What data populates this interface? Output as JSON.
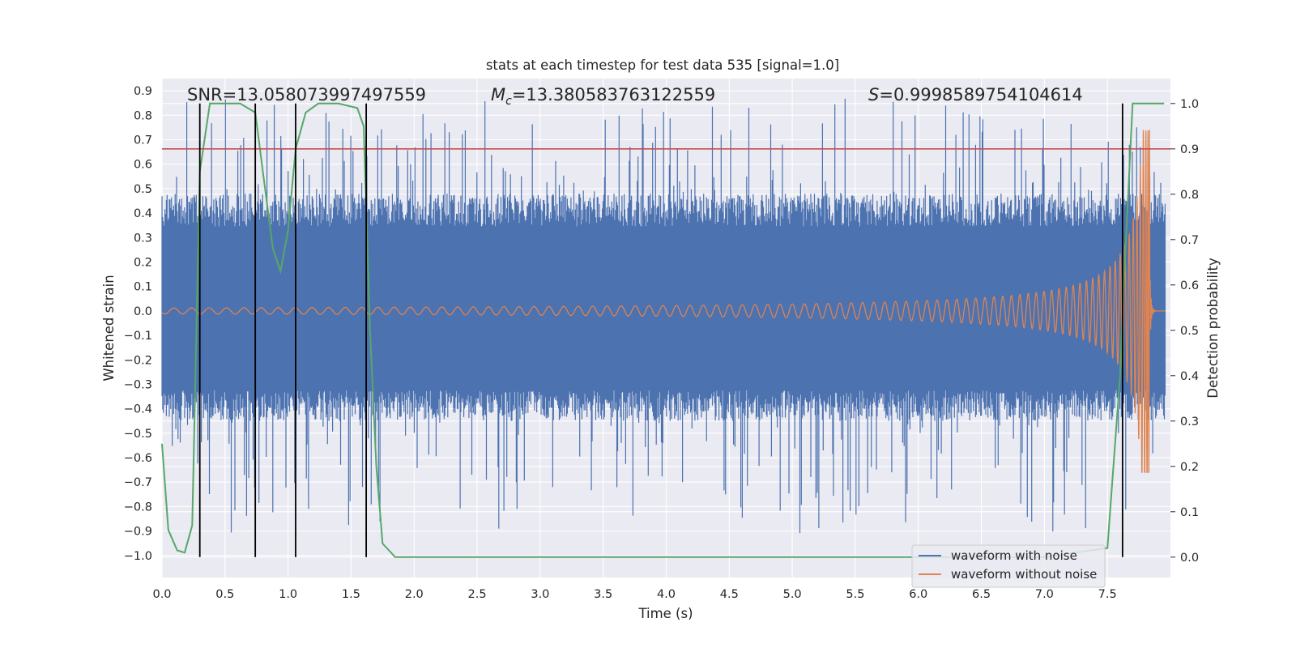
{
  "chart_data": {
    "type": "line",
    "title": "stats at each timestep for test data 535 [signal=1.0]",
    "xlabel": "Time (s)",
    "ylabel": "Whitened strain",
    "y2label": "Detection probability",
    "xlim": [
      0.0,
      8.0
    ],
    "ylim": [
      -1.09,
      0.95
    ],
    "y2lim": [
      -0.045,
      1.055
    ],
    "x_ticks": [
      "0.0",
      "0.5",
      "1.0",
      "1.5",
      "2.0",
      "2.5",
      "3.0",
      "3.5",
      "4.0",
      "4.5",
      "5.0",
      "5.5",
      "6.0",
      "6.5",
      "7.0",
      "7.5"
    ],
    "y_ticks": [
      "0.9",
      "0.8",
      "0.7",
      "0.6",
      "0.5",
      "0.4",
      "0.3",
      "0.2",
      "0.1",
      "0.0",
      "−0.1",
      "−0.2",
      "−0.3",
      "−0.4",
      "−0.5",
      "−0.6",
      "−0.7",
      "−0.8",
      "−0.9",
      "−1.0"
    ],
    "y2_ticks": [
      "1.0",
      "0.9",
      "0.8",
      "0.7",
      "0.6",
      "0.5",
      "0.4",
      "0.3",
      "0.2",
      "0.1",
      "0.0"
    ],
    "grid": true,
    "legend_position": "bottom-right",
    "annotations": {
      "snr": "SNR=13.058073997497559",
      "mc_symbol": "M",
      "mc_sub": "c",
      "mc_value": "=13.380583763122559",
      "s_symbol": "S",
      "s_value": "=0.9998589754104614"
    },
    "series": [
      {
        "name": "waveform with noise",
        "color": "#4c72b0",
        "axis": "left",
        "envelope_upper": 0.48,
        "envelope_lower": -0.45,
        "max": 0.9,
        "min": -1.0
      },
      {
        "name": "waveform without noise",
        "color": "#dd8452",
        "axis": "left",
        "start_amplitude": 0.012,
        "peak": 0.74,
        "trough": -0.66,
        "merger_time": 7.84
      },
      {
        "name": "detection probability",
        "color": "#55a868",
        "axis": "right",
        "x": [
          0.0,
          0.05,
          0.12,
          0.18,
          0.24,
          0.3,
          0.38,
          0.5,
          0.62,
          0.74,
          0.8,
          0.88,
          0.94,
          1.0,
          1.06,
          1.14,
          1.24,
          1.4,
          1.55,
          1.6,
          1.65,
          1.7,
          1.75,
          1.85,
          1.95,
          2.5,
          3.0,
          4.0,
          5.0,
          6.0,
          7.0,
          7.5,
          7.6,
          7.63,
          7.7,
          7.75,
          7.85,
          7.95
        ],
        "y": [
          0.25,
          0.06,
          0.015,
          0.01,
          0.07,
          0.85,
          1.0,
          1.0,
          1.0,
          0.98,
          0.85,
          0.68,
          0.63,
          0.72,
          0.9,
          0.98,
          1.0,
          1.0,
          0.99,
          0.95,
          0.5,
          0.2,
          0.03,
          0.0,
          0.0,
          0.0,
          0.0,
          0.0,
          0.0,
          0.0,
          0.0,
          0.02,
          0.4,
          0.6,
          1.0,
          1.0,
          1.0,
          1.0
        ]
      }
    ],
    "threshold": {
      "value": 0.9,
      "axis": "right",
      "color": "#c44e52"
    },
    "vertical_lines": [
      0.3,
      0.74,
      1.06,
      1.62,
      7.62
    ]
  }
}
